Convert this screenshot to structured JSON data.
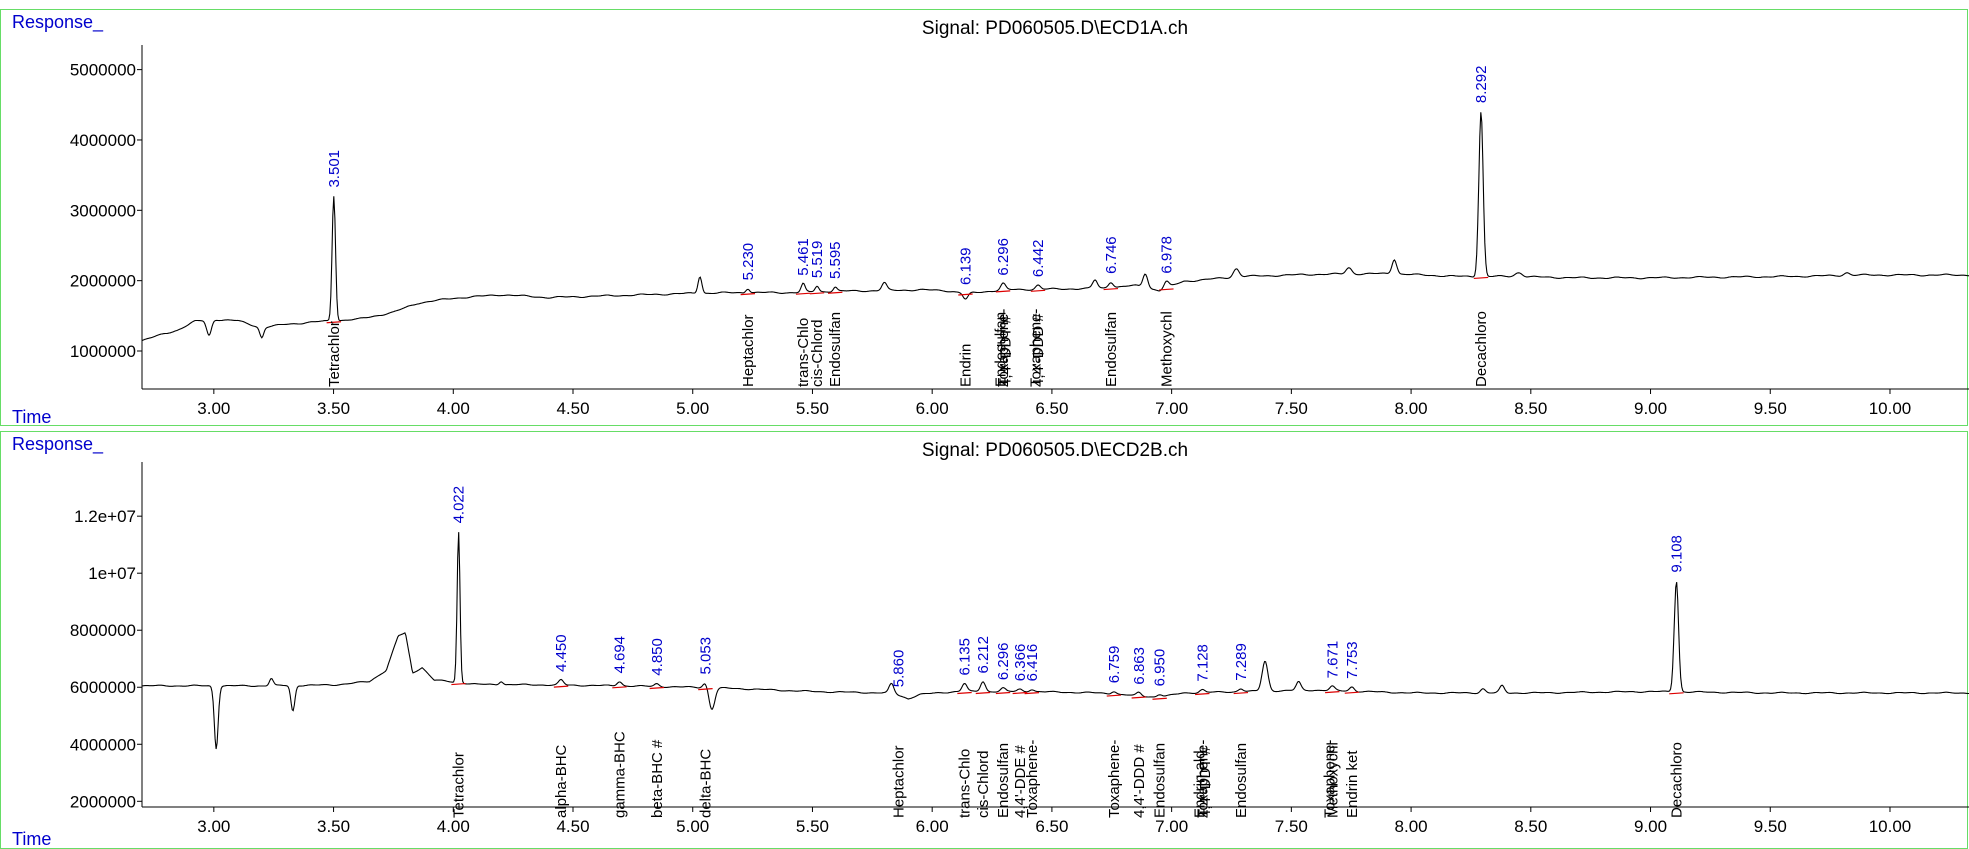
{
  "colors": {
    "trace": "#000000",
    "baseline": "#dd0000",
    "rt_label": "#0000cc",
    "frame": "#66dd66"
  },
  "chart_data": [
    {
      "type": "line",
      "title": "Signal: PD060505.D\\ECD1A.ch",
      "ylabel": "Response_",
      "xlabel": "Time",
      "xlim": [
        2.7,
        10.33
      ],
      "ylim": [
        460000,
        5350000
      ],
      "y_ticks": [
        1000000,
        2000000,
        3000000,
        4000000,
        5000000
      ],
      "y_tick_labels": [
        "1000000",
        "2000000",
        "3000000",
        "4000000",
        "5000000"
      ],
      "x_ticks": [
        3.0,
        3.5,
        4.0,
        4.5,
        5.0,
        5.5,
        6.0,
        6.5,
        7.0,
        7.5,
        8.0,
        8.5,
        9.0,
        9.5,
        10.0
      ],
      "x_tick_labels": [
        "3.00",
        "3.50",
        "4.00",
        "4.50",
        "5.00",
        "5.50",
        "6.00",
        "6.50",
        "7.00",
        "7.50",
        "8.00",
        "8.50",
        "9.00",
        "9.50",
        "10.00"
      ],
      "baseline": [
        [
          2.7,
          1150000
        ],
        [
          2.85,
          1300000
        ],
        [
          2.92,
          1420000
        ],
        [
          3.0,
          1450000
        ],
        [
          3.1,
          1430000
        ],
        [
          3.15,
          1380000
        ],
        [
          3.2,
          1330000
        ],
        [
          3.3,
          1380000
        ],
        [
          3.45,
          1420000
        ],
        [
          3.6,
          1450000
        ],
        [
          3.75,
          1550000
        ],
        [
          3.85,
          1680000
        ],
        [
          4.0,
          1750000
        ],
        [
          4.2,
          1800000
        ],
        [
          4.4,
          1760000
        ],
        [
          4.6,
          1780000
        ],
        [
          4.8,
          1800000
        ],
        [
          5.0,
          1820000
        ],
        [
          5.2,
          1830000
        ],
        [
          5.4,
          1830000
        ],
        [
          5.6,
          1850000
        ],
        [
          5.8,
          1860000
        ],
        [
          5.95,
          1870000
        ],
        [
          6.05,
          1860000
        ],
        [
          6.15,
          1820000
        ],
        [
          6.3,
          1870000
        ],
        [
          6.5,
          1880000
        ],
        [
          6.7,
          1890000
        ],
        [
          6.85,
          1930000
        ],
        [
          6.95,
          1860000
        ],
        [
          7.05,
          1990000
        ],
        [
          7.3,
          2060000
        ],
        [
          7.6,
          2090000
        ],
        [
          7.9,
          2100000
        ],
        [
          8.2,
          2060000
        ],
        [
          8.4,
          2060000
        ],
        [
          8.7,
          2040000
        ],
        [
          9.0,
          2040000
        ],
        [
          9.3,
          2050000
        ],
        [
          9.6,
          2060000
        ],
        [
          9.9,
          2080000
        ],
        [
          10.33,
          2080000
        ]
      ],
      "peaks": [
        {
          "rt": 2.98,
          "height": -220000,
          "width": 0.01
        },
        {
          "rt": 3.2,
          "height": -140000,
          "width": 0.008
        },
        {
          "rt": 3.501,
          "height": 1780000,
          "width": 0.007
        },
        {
          "rt": 5.03,
          "height": 240000,
          "width": 0.008
        },
        {
          "rt": 5.23,
          "height": 60000,
          "width": 0.008
        },
        {
          "rt": 5.461,
          "height": 120000,
          "width": 0.008
        },
        {
          "rt": 5.519,
          "height": 80000,
          "width": 0.008
        },
        {
          "rt": 5.595,
          "height": 60000,
          "width": 0.008
        },
        {
          "rt": 5.8,
          "height": 110000,
          "width": 0.01
        },
        {
          "rt": 6.139,
          "height": -90000,
          "width": 0.01
        },
        {
          "rt": 6.296,
          "height": 90000,
          "width": 0.01
        },
        {
          "rt": 6.442,
          "height": 60000,
          "width": 0.01
        },
        {
          "rt": 6.68,
          "height": 120000,
          "width": 0.01
        },
        {
          "rt": 6.746,
          "height": 80000,
          "width": 0.01
        },
        {
          "rt": 6.89,
          "height": 200000,
          "width": 0.01
        },
        {
          "rt": 6.978,
          "height": 90000,
          "width": 0.01
        },
        {
          "rt": 7.27,
          "height": 120000,
          "width": 0.012
        },
        {
          "rt": 7.74,
          "height": 90000,
          "width": 0.012
        },
        {
          "rt": 7.93,
          "height": 210000,
          "width": 0.01
        },
        {
          "rt": 8.292,
          "height": 2350000,
          "width": 0.009
        },
        {
          "rt": 8.45,
          "height": 60000,
          "width": 0.015
        },
        {
          "rt": 9.82,
          "height": 40000,
          "width": 0.012
        }
      ],
      "rt_labels": [
        "3.501",
        "5.230",
        "5.461",
        "5.519",
        "5.595",
        "6.139",
        "6.296",
        "6.442",
        "6.746",
        "6.978",
        "8.292"
      ],
      "compounds": [
        {
          "rt": 3.501,
          "name": "Tetrachlor"
        },
        {
          "rt": 5.23,
          "name": "Heptachlor"
        },
        {
          "rt": 5.461,
          "name": "trans-Chlo"
        },
        {
          "rt": 5.519,
          "name": "cis-Chlord"
        },
        {
          "rt": 5.595,
          "name": "Endosulfan"
        },
        {
          "rt": 6.139,
          "name": "Endrin"
        },
        {
          "rt": 6.285,
          "name": "Endosulfan"
        },
        {
          "rt": 6.296,
          "name": "Toxaphene-"
        },
        {
          "rt": 6.307,
          "name": "4,4'-DDT #"
        },
        {
          "rt": 6.431,
          "name": "Toxaphene-"
        },
        {
          "rt": 6.442,
          "name": "4,4'-DDD #"
        },
        {
          "rt": 6.746,
          "name": "Endosulfan"
        },
        {
          "rt": 6.978,
          "name": "Methoxychl"
        },
        {
          "rt": 8.292,
          "name": "Decachloro"
        }
      ]
    },
    {
      "type": "line",
      "title": "Signal: PD060505.D\\ECD2B.ch",
      "ylabel": "Response_",
      "xlabel": "Time",
      "xlim": [
        2.7,
        10.33
      ],
      "ylim": [
        1800000,
        13900000
      ],
      "y_ticks": [
        2000000,
        4000000,
        6000000,
        8000000,
        10000000,
        12000000
      ],
      "y_tick_labels": [
        "2000000",
        "4000000",
        "6000000",
        "8000000",
        "1e+07",
        "1.2e+07"
      ],
      "x_ticks": [
        3.0,
        3.5,
        4.0,
        4.5,
        5.0,
        5.5,
        6.0,
        6.5,
        7.0,
        7.5,
        8.0,
        8.5,
        9.0,
        9.5,
        10.0
      ],
      "x_tick_labels": [
        "3.00",
        "3.50",
        "4.00",
        "4.50",
        "5.00",
        "5.50",
        "6.00",
        "6.50",
        "7.00",
        "7.50",
        "8.00",
        "8.50",
        "9.00",
        "9.50",
        "10.00"
      ],
      "baseline": [
        [
          2.7,
          6050000
        ],
        [
          3.2,
          6050000
        ],
        [
          3.5,
          6080000
        ],
        [
          3.65,
          6200000
        ],
        [
          3.72,
          6600000
        ],
        [
          3.77,
          7800000
        ],
        [
          3.8,
          7900000
        ],
        [
          3.83,
          6500000
        ],
        [
          3.87,
          6700000
        ],
        [
          3.92,
          6250000
        ],
        [
          4.1,
          6100000
        ],
        [
          4.4,
          6080000
        ],
        [
          4.7,
          6050000
        ],
        [
          5.0,
          6000000
        ],
        [
          5.2,
          5950000
        ],
        [
          5.5,
          5850000
        ],
        [
          5.8,
          5800000
        ],
        [
          5.85,
          5750000
        ],
        [
          5.9,
          5600000
        ],
        [
          5.95,
          5750000
        ],
        [
          6.1,
          5850000
        ],
        [
          6.4,
          5850000
        ],
        [
          6.7,
          5800000
        ],
        [
          6.85,
          5700000
        ],
        [
          6.95,
          5650000
        ],
        [
          7.05,
          5800000
        ],
        [
          7.3,
          5850000
        ],
        [
          7.6,
          5900000
        ],
        [
          8.0,
          5800000
        ],
        [
          8.5,
          5800000
        ],
        [
          9.0,
          5850000
        ],
        [
          9.5,
          5800000
        ],
        [
          10.33,
          5800000
        ]
      ],
      "peaks": [
        {
          "rt": 3.01,
          "height": -2200000,
          "width": 0.008
        },
        {
          "rt": 3.24,
          "height": 250000,
          "width": 0.008
        },
        {
          "rt": 3.33,
          "height": -900000,
          "width": 0.008
        },
        {
          "rt": 4.022,
          "height": 5300000,
          "width": 0.006
        },
        {
          "rt": 4.2,
          "height": 120000,
          "width": 0.008
        },
        {
          "rt": 4.45,
          "height": 180000,
          "width": 0.01
        },
        {
          "rt": 4.694,
          "height": 150000,
          "width": 0.01
        },
        {
          "rt": 4.85,
          "height": 100000,
          "width": 0.01
        },
        {
          "rt": 5.053,
          "height": 180000,
          "width": 0.01
        },
        {
          "rt": 5.08,
          "height": -750000,
          "width": 0.012
        },
        {
          "rt": 5.83,
          "height": 350000,
          "width": 0.01
        },
        {
          "rt": 6.135,
          "height": 280000,
          "width": 0.01
        },
        {
          "rt": 6.212,
          "height": 350000,
          "width": 0.01
        },
        {
          "rt": 6.296,
          "height": 120000,
          "width": 0.01
        },
        {
          "rt": 6.366,
          "height": 80000,
          "width": 0.01
        },
        {
          "rt": 6.416,
          "height": 80000,
          "width": 0.01
        },
        {
          "rt": 6.759,
          "height": 100000,
          "width": 0.01
        },
        {
          "rt": 6.863,
          "height": 120000,
          "width": 0.01
        },
        {
          "rt": 6.95,
          "height": 100000,
          "width": 0.01
        },
        {
          "rt": 7.128,
          "height": 100000,
          "width": 0.01
        },
        {
          "rt": 7.289,
          "height": 100000,
          "width": 0.01
        },
        {
          "rt": 7.39,
          "height": 1050000,
          "width": 0.012
        },
        {
          "rt": 7.53,
          "height": 300000,
          "width": 0.01
        },
        {
          "rt": 7.671,
          "height": 150000,
          "width": 0.01
        },
        {
          "rt": 7.753,
          "height": 150000,
          "width": 0.01
        },
        {
          "rt": 8.3,
          "height": 150000,
          "width": 0.01
        },
        {
          "rt": 8.38,
          "height": 250000,
          "width": 0.01
        },
        {
          "rt": 9.108,
          "height": 3900000,
          "width": 0.009
        }
      ],
      "rt_labels": [
        "4.022",
        "4.450",
        "4.694",
        "4.850",
        "5.053",
        "5.860",
        "6.135",
        "6.212",
        "6.296",
        "6.366",
        "6.416",
        "6.759",
        "6.863",
        "6.950",
        "7.128",
        "7.289",
        "7.671",
        "7.753",
        "9.108"
      ],
      "compounds": [
        {
          "rt": 4.022,
          "name": "Tetrachlor"
        },
        {
          "rt": 4.45,
          "name": "alpha-BHC"
        },
        {
          "rt": 4.694,
          "name": "gamma-BHC"
        },
        {
          "rt": 4.85,
          "name": "beta-BHC #"
        },
        {
          "rt": 5.053,
          "name": "delta-BHC"
        },
        {
          "rt": 5.86,
          "name": "Heptachlor"
        },
        {
          "rt": 6.135,
          "name": "trans-Chlo"
        },
        {
          "rt": 6.212,
          "name": "cis-Chlord"
        },
        {
          "rt": 6.296,
          "name": "Endosulfan"
        },
        {
          "rt": 6.366,
          "name": "4,4'-DDE #"
        },
        {
          "rt": 6.416,
          "name": "Toxaphene-"
        },
        {
          "rt": 6.759,
          "name": "Toxaphene-"
        },
        {
          "rt": 6.863,
          "name": "4,4'-DDD #"
        },
        {
          "rt": 6.95,
          "name": "Endosulfan"
        },
        {
          "rt": 7.117,
          "name": "Endrin ald"
        },
        {
          "rt": 7.128,
          "name": "Toxaphene-"
        },
        {
          "rt": 7.139,
          "name": "4,4'-DDT #"
        },
        {
          "rt": 7.289,
          "name": "Endosulfan"
        },
        {
          "rt": 7.66,
          "name": "Toxaphene-"
        },
        {
          "rt": 7.671,
          "name": "Methoxychl"
        },
        {
          "rt": 7.753,
          "name": "Endrin ket"
        },
        {
          "rt": 9.108,
          "name": "Decachloro"
        }
      ]
    }
  ]
}
